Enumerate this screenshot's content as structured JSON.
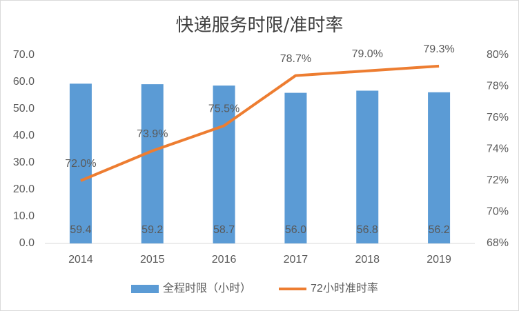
{
  "chart_data": {
    "type": "bar_line",
    "title": "快递服务时限/准时率",
    "categories": [
      "2014",
      "2015",
      "2016",
      "2017",
      "2018",
      "2019"
    ],
    "series": [
      {
        "name": "全程时限（小时）",
        "type": "bar",
        "color": "#5b9bd5",
        "values": [
          59.4,
          59.2,
          58.7,
          56.0,
          56.8,
          56.2
        ],
        "value_labels": [
          "59.4",
          "59.2",
          "58.7",
          "56.0",
          "56.8",
          "56.2"
        ]
      },
      {
        "name": "72小时准时率",
        "type": "line",
        "axis": "y2",
        "color": "#ed7d31",
        "values": [
          72.0,
          73.9,
          75.5,
          78.7,
          79.0,
          79.3
        ],
        "value_labels": [
          "72.0%",
          "73.9%",
          "75.5%",
          "78.7%",
          "79.0%",
          "79.3%"
        ]
      }
    ],
    "ylim": [
      0,
      70
    ],
    "yticks": [
      {
        "value": 0,
        "label": "0.0"
      },
      {
        "value": 10,
        "label": "10.0"
      },
      {
        "value": 20,
        "label": "20.0"
      },
      {
        "value": 30,
        "label": "30.0"
      },
      {
        "value": 40,
        "label": "40.0"
      },
      {
        "value": 50,
        "label": "50.0"
      },
      {
        "value": 60,
        "label": "60.0"
      },
      {
        "value": 70,
        "label": "70.0"
      }
    ],
    "y2lim": [
      68,
      80
    ],
    "y2ticks": [
      {
        "value": 68,
        "label": "68%"
      },
      {
        "value": 70,
        "label": "70%"
      },
      {
        "value": 72,
        "label": "72%"
      },
      {
        "value": 74,
        "label": "74%"
      },
      {
        "value": 76,
        "label": "76%"
      },
      {
        "value": 78,
        "label": "78%"
      },
      {
        "value": 80,
        "label": "80%"
      }
    ],
    "legend": "bottom"
  }
}
